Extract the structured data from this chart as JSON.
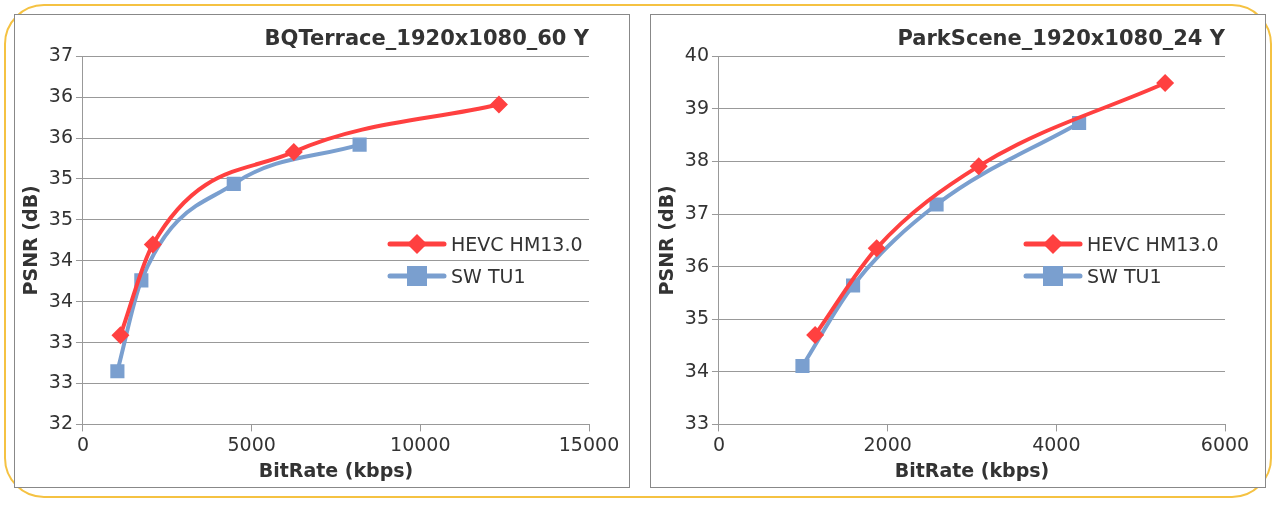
{
  "chart_data": [
    {
      "type": "line",
      "title": "BQTerrace_1920x1080_60 Y",
      "xlabel": "BitRate (kbps)",
      "ylabel": "PSNR (dB)",
      "xlim": [
        0,
        15000
      ],
      "xticks": [
        0,
        5000,
        10000,
        15000
      ],
      "ylim": [
        32,
        36.5
      ],
      "yticks": [
        32,
        {
          "value": 32.5,
          "label": "33"
        },
        33,
        {
          "value": 33.5,
          "label": "34"
        },
        34,
        {
          "value": 34.5,
          "label": "35"
        },
        35,
        {
          "value": 35.5,
          "label": "36"
        },
        36,
        {
          "value": 36.5,
          "label": "37"
        }
      ],
      "grid": "y",
      "legend": "right",
      "series": [
        {
          "name": "HEVC HM13.0",
          "color": "#ff4040",
          "marker": "diamond",
          "x": [
            1110,
            2070,
            6250,
            12330
          ],
          "values": [
            33.09,
            34.2,
            35.33,
            35.91
          ]
        },
        {
          "name": "SW TU1",
          "color": "#7a9fcf",
          "marker": "square",
          "x": [
            1020,
            1730,
            4470,
            8200
          ],
          "values": [
            32.65,
            33.76,
            34.94,
            35.42
          ]
        }
      ]
    },
    {
      "type": "line",
      "title": "ParkScene_1920x1080_24 Y",
      "xlabel": "BitRate (kbps)",
      "ylabel": "PSNR (dB)",
      "xlim": [
        0,
        6000
      ],
      "xticks": [
        0,
        2000,
        4000,
        6000
      ],
      "ylim": [
        33,
        40
      ],
      "yticks": [
        33,
        34,
        35,
        36,
        37,
        38,
        39,
        40
      ],
      "grid": "y",
      "legend": "right",
      "series": [
        {
          "name": "HEVC HM13.0",
          "color": "#ff4040",
          "marker": "diamond",
          "x": [
            1140,
            1870,
            3080,
            5290
          ],
          "values": [
            34.7,
            36.35,
            37.91,
            39.49
          ]
        },
        {
          "name": "SW TU1",
          "color": "#7a9fcf",
          "marker": "square",
          "x": [
            990,
            1590,
            2580,
            4270
          ],
          "values": [
            34.11,
            35.64,
            37.18,
            38.73
          ]
        }
      ]
    }
  ]
}
